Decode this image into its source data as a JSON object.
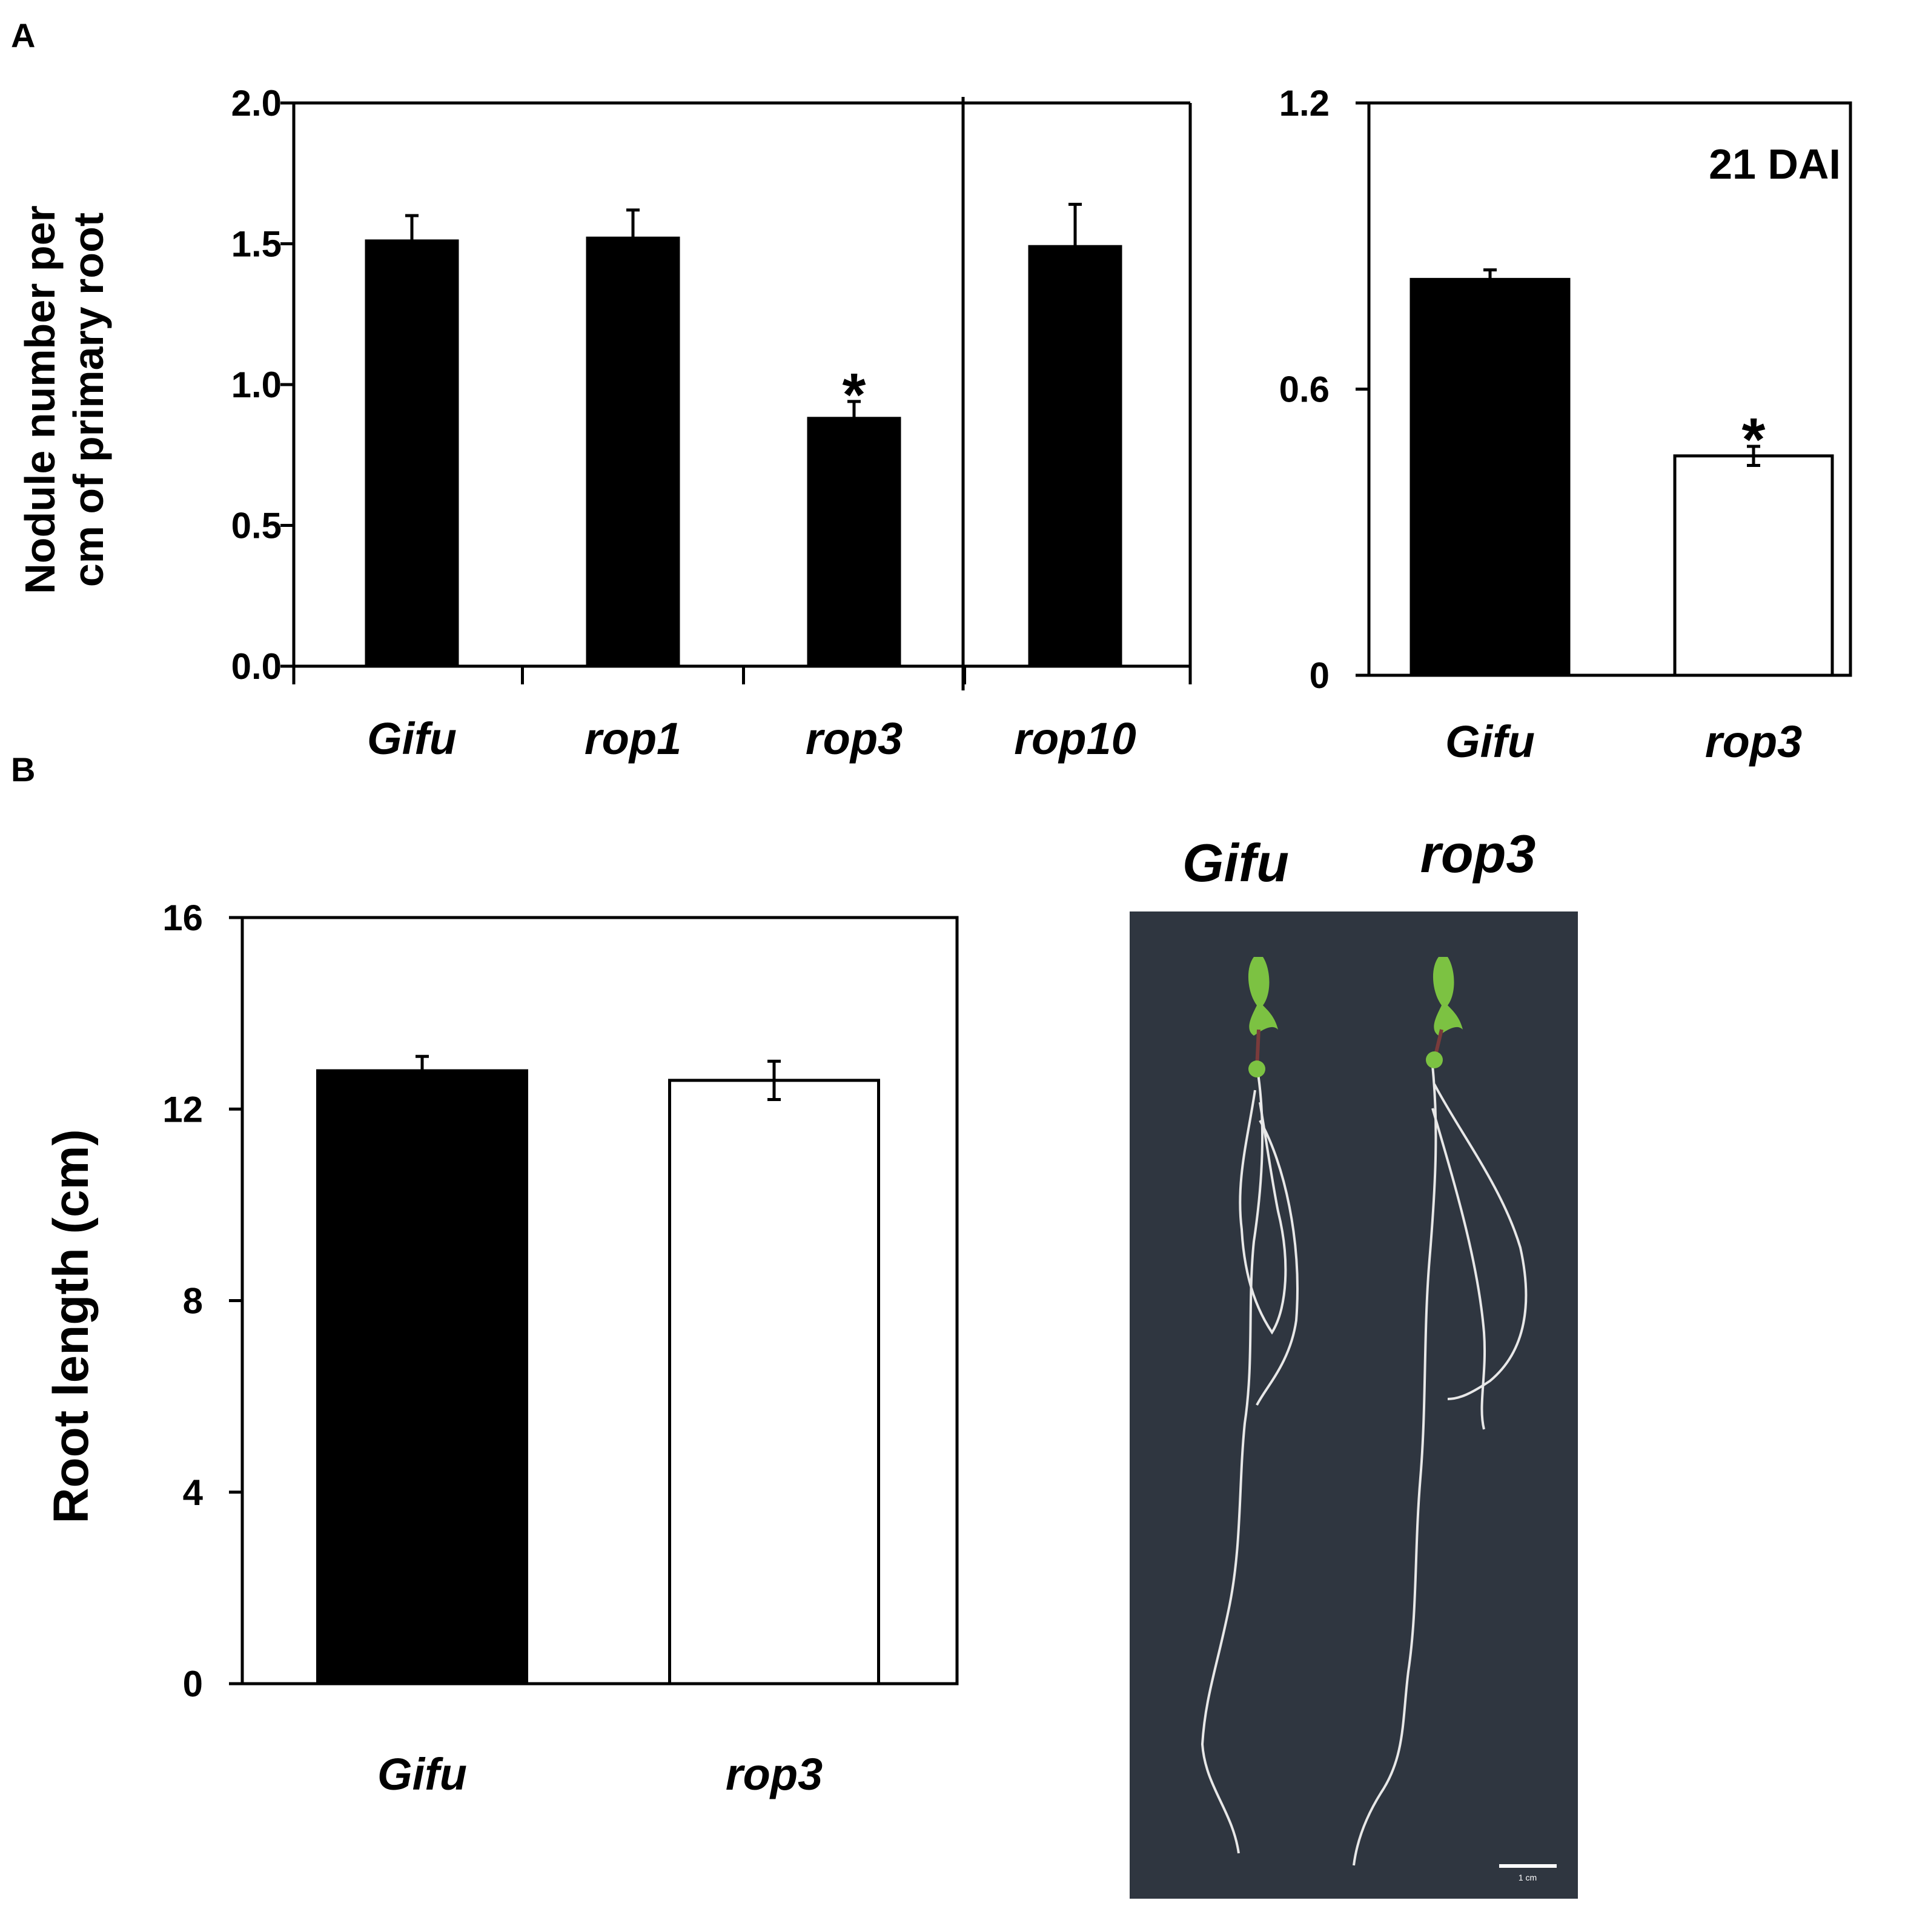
{
  "panels": {
    "a": "A",
    "b": "B"
  },
  "chart_data": [
    {
      "type": "bar",
      "panel": "A",
      "ylabel_lines": [
        "Nodule number per",
        "cm of primary root"
      ],
      "categories": [
        "Gifu",
        "rop1",
        "rop3",
        "rop10"
      ],
      "values": [
        1.51,
        1.52,
        0.88,
        1.49
      ],
      "errors": [
        0.09,
        0.1,
        0.06,
        0.15
      ],
      "significance": [
        "",
        "",
        "*",
        ""
      ],
      "bar_colors": [
        "#000000",
        "#000000",
        "#000000",
        "#000000"
      ],
      "ylim": [
        0,
        2.0
      ],
      "yticks": [
        "0.0",
        "0.5",
        "1.0",
        "1.5",
        "2.0"
      ],
      "ytick_values": [
        0,
        0.5,
        1.0,
        1.5,
        2.0
      ]
    },
    {
      "type": "bar",
      "panel": "A",
      "annotation": "21 DAI",
      "categories": [
        "Gifu",
        "rop3"
      ],
      "values": [
        0.83,
        0.46
      ],
      "errors": [
        0.02,
        0.02
      ],
      "significance": [
        "",
        "*"
      ],
      "bar_colors": [
        "#000000",
        "#ffffff"
      ],
      "ylim": [
        0,
        1.2
      ],
      "yticks": [
        "0",
        "0.6",
        "1.2"
      ],
      "ytick_values": [
        0,
        0.6,
        1.2
      ]
    },
    {
      "type": "bar",
      "panel": "B",
      "ylabel": "Root length (cm)",
      "categories": [
        "Gifu",
        "rop3"
      ],
      "values": [
        12.8,
        12.6
      ],
      "errors": [
        0.3,
        0.4
      ],
      "significance": [
        "",
        ""
      ],
      "bar_colors": [
        "#000000",
        "#ffffff"
      ],
      "ylim": [
        0,
        16
      ],
      "yticks": [
        "0",
        "4",
        "8",
        "12",
        "16"
      ],
      "ytick_values": [
        0,
        4,
        8,
        12,
        16
      ]
    }
  ],
  "photo": {
    "labels": [
      "Gifu",
      "rop3"
    ],
    "scale_bar_text": "1 cm",
    "background_color": "#2f3640",
    "shoot_color": "#7cc242",
    "root_color": "#e8e8e8"
  }
}
